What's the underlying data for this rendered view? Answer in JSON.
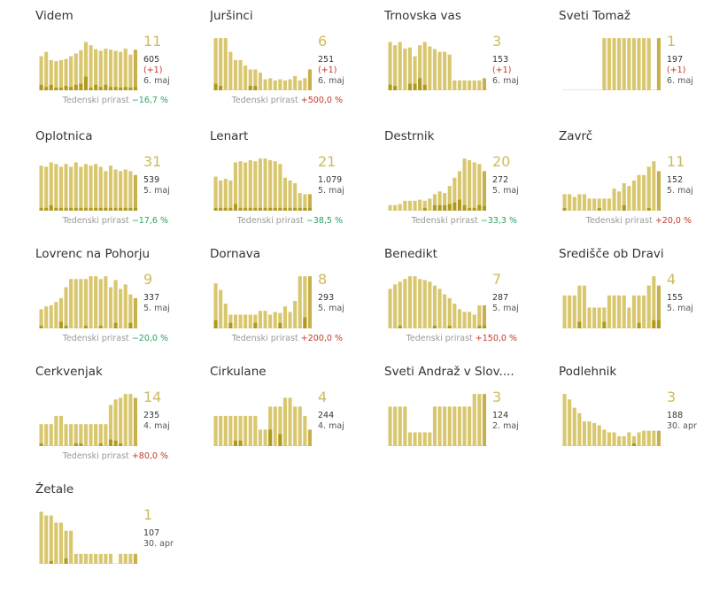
{
  "colors": {
    "bar": "#d8c76e",
    "bar_dark": "#b09a1c",
    "last_bar": "#c8b14a"
  },
  "weekly_label": "Tedenski prirast",
  "municipalities": [
    {
      "name": "Videm",
      "new": "11",
      "total": "605",
      "delta": "(+1)",
      "date": "6. maj",
      "weekly": "−16,7 %",
      "weekly_sign": "neg",
      "bars": [
        0.62,
        0.7,
        0.55,
        0.53,
        0.55,
        0.57,
        0.62,
        0.67,
        0.73,
        0.88,
        0.82,
        0.75,
        0.72,
        0.76,
        0.74,
        0.72,
        0.7,
        0.76,
        0.65,
        0.74
      ],
      "dark": [
        0.1,
        0.06,
        0.1,
        0.05,
        0.05,
        0.08,
        0.06,
        0.1,
        0.12,
        0.25,
        0.05,
        0.1,
        0.06,
        0.1,
        0.06,
        0.06,
        0.05,
        0.06,
        0.05,
        0.06
      ]
    },
    {
      "name": "Juršinci",
      "new": "6",
      "total": "251",
      "delta": "(+1)",
      "date": "6. maj",
      "weekly": "+500,0 %",
      "weekly_sign": "pos",
      "bars": [
        0.95,
        0.95,
        0.95,
        0.7,
        0.55,
        0.55,
        0.45,
        0.38,
        0.38,
        0.32,
        0.2,
        0.22,
        0.18,
        0.2,
        0.18,
        0.2,
        0.26,
        0.18,
        0.22,
        0.38
      ],
      "dark": [
        0.12,
        0.08,
        0,
        0,
        0,
        0,
        0,
        0.08,
        0.08,
        0,
        0,
        0,
        0,
        0,
        0,
        0,
        0,
        0,
        0,
        0
      ]
    },
    {
      "name": "Trnovska vas",
      "new": "3",
      "total": "153",
      "delta": "(+1)",
      "date": "6. maj",
      "weekly": "",
      "weekly_sign": "",
      "bars": [
        0.88,
        0.82,
        0.88,
        0.76,
        0.78,
        0.62,
        0.82,
        0.88,
        0.8,
        0.75,
        0.7,
        0.7,
        0.65,
        0.18,
        0.18,
        0.18,
        0.18,
        0.18,
        0.18,
        0.22
      ],
      "dark": [
        0.1,
        0.08,
        0,
        0,
        0.12,
        0.12,
        0.22,
        0.1,
        0,
        0,
        0,
        0,
        0,
        0,
        0,
        0,
        0,
        0,
        0,
        0
      ]
    },
    {
      "name": "Sveti Tomaž",
      "new": "1",
      "total": "197",
      "delta": "(+1)",
      "date": "6. maj",
      "weekly": "",
      "weekly_sign": "",
      "bars": [
        0,
        0,
        0,
        0,
        0,
        0,
        0,
        0,
        0.95,
        0.95,
        0.95,
        0.95,
        0.95,
        0.95,
        0.95,
        0.95,
        0.95,
        0.95,
        0,
        0.95
      ],
      "dark": [
        0,
        0,
        0,
        0,
        0,
        0,
        0,
        0,
        0,
        0,
        0,
        0,
        0,
        0,
        0,
        0,
        0,
        0,
        0,
        0
      ]
    },
    {
      "name": "Oplotnica",
      "new": "31",
      "total": "539",
      "delta": "",
      "date": "5. maj",
      "weekly": "−17,6 %",
      "weekly_sign": "neg",
      "bars": [
        0.82,
        0.8,
        0.88,
        0.85,
        0.8,
        0.85,
        0.8,
        0.88,
        0.8,
        0.85,
        0.82,
        0.85,
        0.8,
        0.72,
        0.82,
        0.75,
        0.72,
        0.75,
        0.72,
        0.65
      ],
      "dark": [
        0.05,
        0.05,
        0.1,
        0.05,
        0.05,
        0.05,
        0.05,
        0.05,
        0.05,
        0.05,
        0.05,
        0.05,
        0.05,
        0.05,
        0.05,
        0.05,
        0.05,
        0.05,
        0.05,
        0.05
      ]
    },
    {
      "name": "Lenart",
      "new": "21",
      "total": "1.079",
      "delta": "",
      "date": "5. maj",
      "weekly": "−38,5 %",
      "weekly_sign": "neg",
      "bars": [
        0.62,
        0.55,
        0.58,
        0.55,
        0.88,
        0.9,
        0.88,
        0.92,
        0.9,
        0.95,
        0.95,
        0.92,
        0.9,
        0.85,
        0.6,
        0.55,
        0.5,
        0.32,
        0.3,
        0.3
      ],
      "dark": [
        0.05,
        0.05,
        0.05,
        0.05,
        0.12,
        0.05,
        0.05,
        0.05,
        0.05,
        0.05,
        0.05,
        0.05,
        0.05,
        0.05,
        0.05,
        0.05,
        0.05,
        0.05,
        0.05,
        0.05
      ]
    },
    {
      "name": "Destrnik",
      "new": "20",
      "total": "272",
      "delta": "",
      "date": "5. maj",
      "weekly": "−33,3 %",
      "weekly_sign": "neg",
      "bars": [
        0.1,
        0.1,
        0.12,
        0.18,
        0.18,
        0.18,
        0.2,
        0.18,
        0.22,
        0.3,
        0.35,
        0.32,
        0.45,
        0.6,
        0.72,
        0.95,
        0.92,
        0.88,
        0.85,
        0.72
      ],
      "dark": [
        0,
        0,
        0,
        0,
        0,
        0,
        0,
        0.05,
        0,
        0.1,
        0.1,
        0.1,
        0.12,
        0.15,
        0.2,
        0.1,
        0.05,
        0.05,
        0.1,
        0.08
      ]
    },
    {
      "name": "Zavrč",
      "new": "11",
      "total": "152",
      "delta": "",
      "date": "5. maj",
      "weekly": "+20,0 %",
      "weekly_sign": "pos",
      "bars": [
        0.3,
        0.3,
        0.25,
        0.3,
        0.3,
        0.22,
        0.22,
        0.22,
        0.22,
        0.22,
        0.4,
        0.35,
        0.5,
        0.45,
        0.55,
        0.65,
        0.65,
        0.8,
        0.9,
        0.72
      ],
      "dark": [
        0.05,
        0,
        0,
        0,
        0,
        0,
        0,
        0.05,
        0,
        0,
        0,
        0,
        0.1,
        0,
        0,
        0,
        0,
        0.05,
        0,
        0
      ]
    },
    {
      "name": "Lovrenc na Pohorju",
      "new": "9",
      "total": "337",
      "delta": "",
      "date": "5. maj",
      "weekly": "−20,0 %",
      "weekly_sign": "neg",
      "bars": [
        0.35,
        0.4,
        0.42,
        0.48,
        0.55,
        0.75,
        0.9,
        0.9,
        0.9,
        0.9,
        0.95,
        0.95,
        0.9,
        0.95,
        0.75,
        0.88,
        0.72,
        0.8,
        0.62,
        0.55
      ],
      "dark": [
        0.05,
        0,
        0,
        0,
        0.12,
        0.05,
        0,
        0,
        0,
        0.05,
        0,
        0,
        0.05,
        0,
        0,
        0.1,
        0,
        0,
        0.1,
        0
      ]
    },
    {
      "name": "Dornava",
      "new": "8",
      "total": "293",
      "delta": "",
      "date": "5. maj",
      "weekly": "+200,0 %",
      "weekly_sign": "pos",
      "bars": [
        0.82,
        0.7,
        0.45,
        0.25,
        0.25,
        0.25,
        0.25,
        0.25,
        0.25,
        0.32,
        0.32,
        0.25,
        0.3,
        0.28,
        0.4,
        0.3,
        0.5,
        0.95,
        0.95,
        0.95
      ],
      "dark": [
        0.15,
        0,
        0,
        0.1,
        0,
        0,
        0,
        0,
        0.1,
        0,
        0,
        0,
        0,
        0.1,
        0,
        0,
        0,
        0,
        0.2,
        0
      ]
    },
    {
      "name": "Benedikt",
      "new": "7",
      "total": "287",
      "delta": "",
      "date": "5. maj",
      "weekly": "+150,0 %",
      "weekly_sign": "pos",
      "bars": [
        0.72,
        0.8,
        0.85,
        0.9,
        0.95,
        0.95,
        0.9,
        0.88,
        0.85,
        0.78,
        0.72,
        0.62,
        0.55,
        0.45,
        0.35,
        0.3,
        0.3,
        0.25,
        0.42,
        0.42
      ],
      "dark": [
        0,
        0,
        0.05,
        0,
        0,
        0,
        0,
        0,
        0,
        0.05,
        0,
        0,
        0.05,
        0,
        0,
        0,
        0,
        0,
        0.05,
        0.05
      ]
    },
    {
      "name": "Središče ob Dravi",
      "new": "4",
      "total": "155",
      "delta": "",
      "date": "5. maj",
      "weekly": "",
      "weekly_sign": "",
      "bars": [
        0.6,
        0.6,
        0.6,
        0.78,
        0.78,
        0.38,
        0.38,
        0.38,
        0.38,
        0.6,
        0.6,
        0.6,
        0.6,
        0.38,
        0.6,
        0.6,
        0.6,
        0.78,
        0.95,
        0.78
      ],
      "dark": [
        0,
        0,
        0,
        0.12,
        0,
        0,
        0,
        0,
        0.12,
        0,
        0,
        0,
        0,
        0,
        0,
        0.1,
        0,
        0,
        0.15,
        0.15
      ]
    },
    {
      "name": "Cerkvenjak",
      "new": "14",
      "total": "235",
      "delta": "",
      "date": "4. maj",
      "weekly": "+80,0 %",
      "weekly_sign": "pos",
      "bars": [
        0.4,
        0.4,
        0.4,
        0.55,
        0.55,
        0.4,
        0.4,
        0.4,
        0.4,
        0.4,
        0.4,
        0.4,
        0.4,
        0.4,
        0.75,
        0.85,
        0.88,
        0.95,
        0.95,
        0.88
      ],
      "dark": [
        0.05,
        0,
        0,
        0,
        0,
        0,
        0,
        0.05,
        0.05,
        0,
        0,
        0,
        0.05,
        0,
        0.12,
        0.1,
        0.05,
        0,
        0,
        0
      ]
    },
    {
      "name": "Cirkulane",
      "new": "4",
      "total": "244",
      "delta": "",
      "date": "4. maj",
      "weekly": "",
      "weekly_sign": "",
      "bars": [
        0.55,
        0.55,
        0.55,
        0.55,
        0.55,
        0.55,
        0.55,
        0.55,
        0.55,
        0.3,
        0.3,
        0.72,
        0.72,
        0.72,
        0.88,
        0.88,
        0.72,
        0.72,
        0.55,
        0.3
      ],
      "dark": [
        0,
        0,
        0,
        0,
        0.1,
        0.1,
        0,
        0,
        0,
        0,
        0,
        0.3,
        0,
        0.22,
        0,
        0,
        0,
        0,
        0,
        0
      ]
    },
    {
      "name": "Sveti Andraž v Slov....",
      "new": "3",
      "total": "124",
      "delta": "",
      "date": "2. maj",
      "weekly": "",
      "weekly_sign": "",
      "bars": [
        0.72,
        0.72,
        0.72,
        0.72,
        0.25,
        0.25,
        0.25,
        0.25,
        0.25,
        0.72,
        0.72,
        0.72,
        0.72,
        0.72,
        0.72,
        0.72,
        0.72,
        0.95,
        0.95,
        0.95
      ],
      "dark": [
        0,
        0,
        0,
        0,
        0,
        0,
        0,
        0,
        0,
        0,
        0,
        0,
        0,
        0,
        0,
        0,
        0,
        0,
        0,
        0
      ]
    },
    {
      "name": "Podlehnik",
      "new": "3",
      "total": "188",
      "delta": "",
      "date": "30. apr",
      "weekly": "",
      "weekly_sign": "",
      "bars": [
        0.95,
        0.85,
        0.7,
        0.6,
        0.45,
        0.45,
        0.42,
        0.38,
        0.3,
        0.25,
        0.25,
        0.18,
        0.18,
        0.25,
        0.18,
        0.25,
        0.28,
        0.28,
        0.28,
        0.28
      ],
      "dark": [
        0,
        0,
        0,
        0,
        0,
        0,
        0,
        0,
        0,
        0,
        0,
        0,
        0,
        0,
        0.05,
        0,
        0,
        0,
        0,
        0
      ]
    },
    {
      "name": "Žetale",
      "new": "1",
      "total": "107",
      "delta": "",
      "date": "30. apr",
      "weekly": "",
      "weekly_sign": "",
      "bars": [
        0.95,
        0.88,
        0.88,
        0.75,
        0.75,
        0.6,
        0.6,
        0.18,
        0.18,
        0.18,
        0.18,
        0.18,
        0.18,
        0.18,
        0.18,
        0.0,
        0.18,
        0.18,
        0.18,
        0.18
      ],
      "dark": [
        0,
        0,
        0.05,
        0,
        0,
        0.1,
        0,
        0,
        0,
        0,
        0,
        0,
        0,
        0,
        0,
        0,
        0,
        0,
        0,
        0
      ]
    }
  ]
}
